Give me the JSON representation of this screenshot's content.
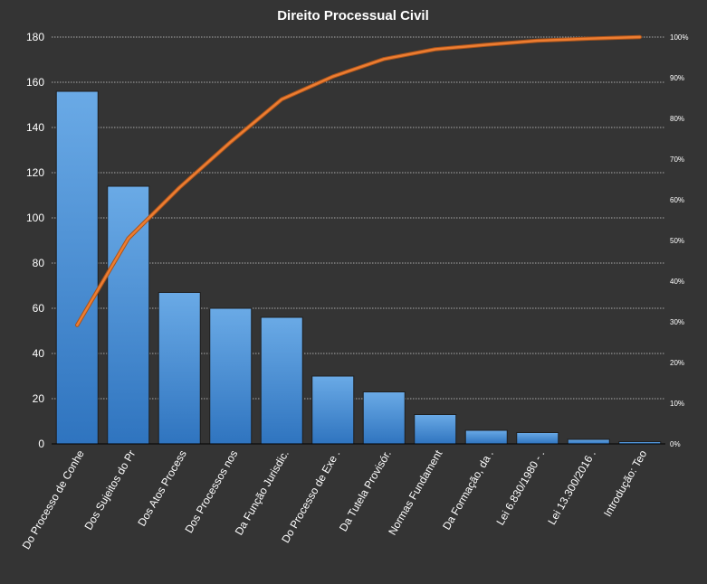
{
  "chart_data": {
    "type": "bar",
    "title": "Direito  Processual  Civil",
    "categories": [
      "Do Processo de Conhe",
      "Dos Sujeitos do Pr",
      "Dos Atos Process",
      "Dos Processos nos",
      "Da Função Jurisdic.",
      "Do Processo de Exe .",
      "Da Tutela Provisór.",
      "Normas Fundament",
      "Da Formação, da .",
      "Lei 6.830/1980 - .",
      "Lei 13.300/2016 .",
      "Introdução: Teo"
    ],
    "series": [
      {
        "type": "bar",
        "values": [
          156,
          114,
          67,
          60,
          56,
          30,
          23,
          13,
          6,
          5,
          2,
          1
        ],
        "color": "#4d93d9",
        "axis": "left"
      },
      {
        "type": "line",
        "values": [
          29.2,
          50.5,
          63.0,
          74.2,
          84.7,
          90.3,
          94.6,
          97.0,
          98.1,
          99.1,
          99.6,
          100
        ],
        "color": "#ed7d31",
        "axis": "right"
      }
    ],
    "y_left": {
      "ylim": [
        0,
        180
      ],
      "ticks": [
        "0",
        "20",
        "40",
        "60",
        "80",
        "100",
        "120",
        "140",
        "160",
        "180"
      ]
    },
    "y_right": {
      "ylim": [
        0,
        100
      ],
      "ticks": [
        "0%",
        "10%",
        "20%",
        "30%",
        "40%",
        "50%",
        "60%",
        "70%",
        "80%",
        "90%",
        "100%"
      ]
    },
    "grid": true,
    "legend": "none"
  },
  "colors": {
    "background": "#343434",
    "text": "#ffffff",
    "gridline": "#d0d0d0",
    "bar_border": "#1f1f1f"
  }
}
